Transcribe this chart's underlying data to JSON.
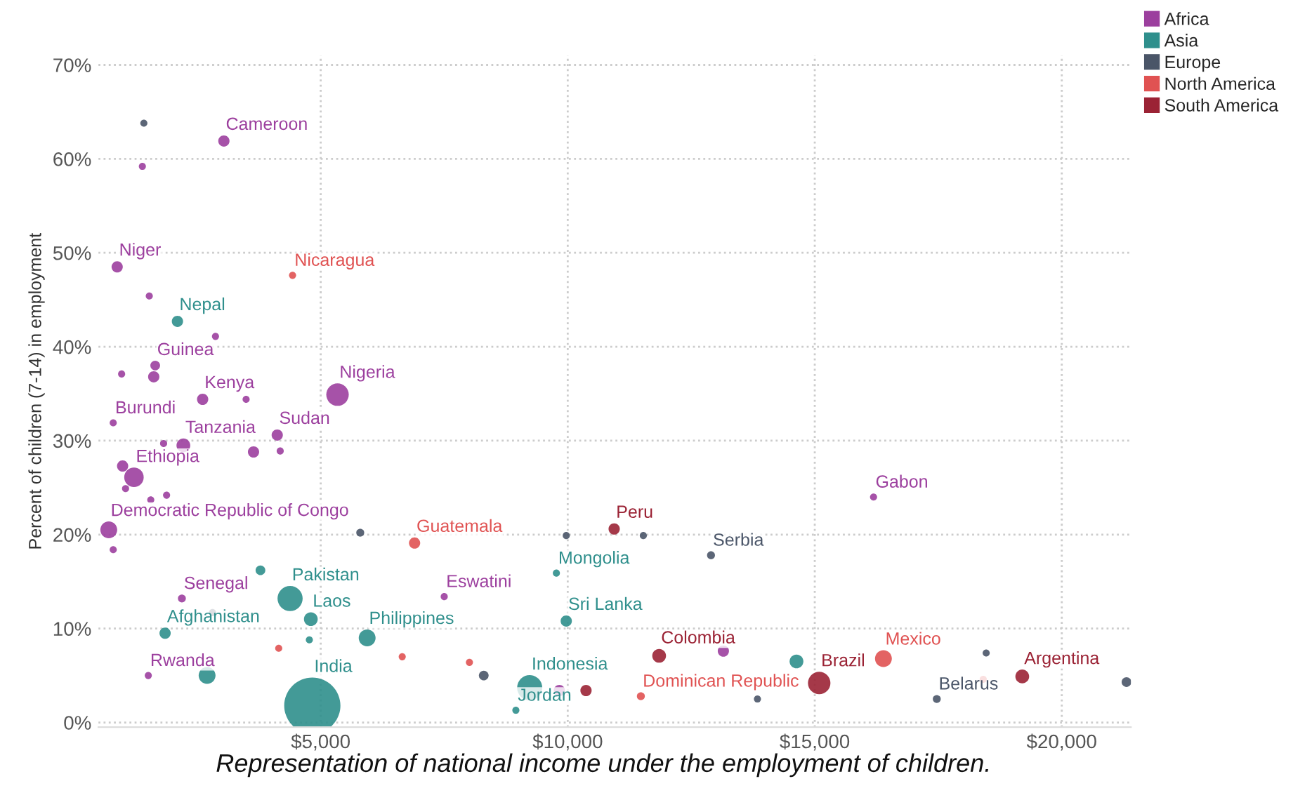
{
  "chart_data": {
    "type": "bubble",
    "ylabel": "Percent of children (7-14) in employment",
    "xlim": [
      500,
      21400
    ],
    "ylim": [
      -0.5,
      71
    ],
    "xticks": [
      {
        "value": 5000,
        "label": "$5,000"
      },
      {
        "value": 10000,
        "label": "$10,000"
      },
      {
        "value": 15000,
        "label": "$15,000"
      },
      {
        "value": 20000,
        "label": "$20,000"
      }
    ],
    "yticks": [
      {
        "value": 0,
        "label": "0%"
      },
      {
        "value": 10,
        "label": "10%"
      },
      {
        "value": 20,
        "label": "20%"
      },
      {
        "value": 30,
        "label": "30%"
      },
      {
        "value": 40,
        "label": "40%"
      },
      {
        "value": 50,
        "label": "50%"
      },
      {
        "value": 60,
        "label": "60%"
      },
      {
        "value": 70,
        "label": "70%"
      }
    ],
    "grid": true,
    "legend": "top right",
    "marker": "circle",
    "annotations": [
      "Representation of national income under the employment of children."
    ],
    "series": [
      {
        "name": "Africa",
        "color": "#9c3f9e",
        "x": [
          3040,
          1390,
          880,
          1530,
          2870,
          1650,
          1620,
          970,
          2610,
          3490,
          5340,
          800,
          2220,
          1820,
          4120,
          4180,
          3640,
          1220,
          990,
          1050,
          1560,
          1880,
          710,
          800,
          2190,
          1510,
          16190,
          13150,
          9830,
          7500
        ],
        "values": [
          61.9,
          59.2,
          48.5,
          45.4,
          41.1,
          38.0,
          36.8,
          37.1,
          34.4,
          34.4,
          34.9,
          31.9,
          29.5,
          29.7,
          30.6,
          28.9,
          28.8,
          26.1,
          27.3,
          24.9,
          23.7,
          24.2,
          20.5,
          18.4,
          13.2,
          5.0,
          24.0,
          7.6,
          3.4,
          13.4
        ],
        "sizes": [
          0.04,
          0.016,
          0.04,
          0.016,
          0.016,
          0.03,
          0.04,
          0.016,
          0.04,
          0.016,
          0.16,
          0.016,
          0.06,
          0.016,
          0.04,
          0.016,
          0.04,
          0.12,
          0.04,
          0.016,
          0.016,
          0.016,
          0.09,
          0.016,
          0.02,
          0.016,
          0.016,
          0.04,
          0.04,
          0.016
        ],
        "value_labels": [
          "Cameroon",
          null,
          "Niger",
          null,
          null,
          "Guinea",
          null,
          null,
          "Kenya",
          null,
          "Nigeria",
          "Burundi",
          "Tanzania",
          null,
          "Sudan",
          null,
          null,
          "Ethiopia",
          null,
          null,
          null,
          null,
          "Democratic Republic of Congo",
          null,
          "Senegal",
          "Rwanda",
          "Gabon",
          null,
          null,
          "Eswatini"
        ]
      },
      {
        "name": "Asia",
        "color": "#2f8f8c",
        "x": [
          2100,
          3780,
          4380,
          1850,
          4800,
          4770,
          5940,
          2700,
          4830,
          9770,
          9970,
          9230,
          8950,
          14630
        ],
        "values": [
          42.7,
          16.2,
          13.2,
          9.5,
          11.0,
          8.8,
          9.0,
          5.0,
          1.8,
          15.9,
          10.8,
          3.7,
          1.3,
          6.5
        ],
        "sizes": [
          0.04,
          0.03,
          0.2,
          0.04,
          0.06,
          0.016,
          0.09,
          0.09,
          1,
          0.016,
          0.04,
          0.2,
          0.016,
          0.06
        ],
        "value_labels": [
          "Nepal",
          null,
          "Pakistan",
          "Afghanistan",
          "Laos",
          null,
          "Philippines",
          null,
          "India",
          "Mongolia",
          "Sri Lanka",
          "Indonesia",
          "Jordan",
          null
        ]
      },
      {
        "name": "Europe",
        "color": "#4a5568",
        "x": [
          1420,
          2810,
          5800,
          9970,
          11530,
          12900,
          8300,
          17470,
          18470,
          21310,
          13840
        ],
        "values": [
          63.8,
          11.7,
          20.2,
          19.9,
          19.9,
          17.8,
          5.0,
          2.5,
          7.4,
          4.3,
          2.5
        ],
        "sizes": [
          0.016,
          0.016,
          0.02,
          0.016,
          0.016,
          0.02,
          0.03,
          0.02,
          0.016,
          0.03,
          0.016
        ],
        "value_labels": [
          null,
          null,
          null,
          null,
          null,
          "Serbia",
          null,
          "Belarus",
          null,
          null,
          null
        ]
      },
      {
        "name": "North America",
        "color": "#e05252",
        "x": [
          4430,
          6900,
          4150,
          6650,
          8010,
          11480,
          16390,
          18410
        ],
        "values": [
          47.6,
          19.1,
          7.9,
          7.0,
          6.4,
          2.8,
          6.8,
          4.6
        ],
        "sizes": [
          0.016,
          0.04,
          0.016,
          0.016,
          0.016,
          0.02,
          0.09,
          0.016
        ],
        "value_labels": [
          "Nicaragua",
          "Guatemala",
          null,
          null,
          null,
          "Dominican Republic",
          "Mexico",
          null
        ]
      },
      {
        "name": "South America",
        "color": "#9b2335",
        "x": [
          10940,
          11850,
          15090,
          19200,
          10370
        ],
        "values": [
          20.6,
          7.1,
          4.2,
          4.9,
          3.4
        ],
        "sizes": [
          0.04,
          0.06,
          0.16,
          0.06,
          0.04
        ],
        "value_labels": [
          "Peru",
          "Colombia",
          "Brazil",
          "Argentina",
          null
        ]
      }
    ]
  }
}
